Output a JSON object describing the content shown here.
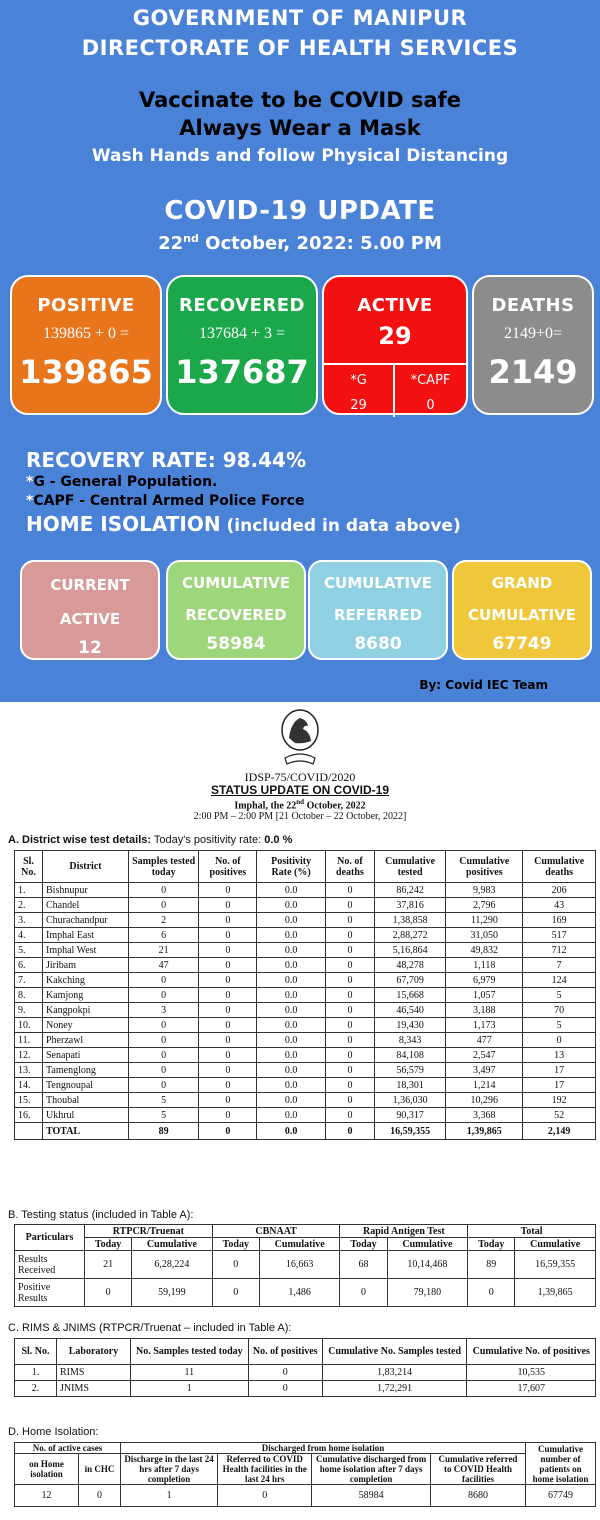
{
  "poster": {
    "gov_line1": "GOVERNMENT OF MANIPUR",
    "gov_line2": "DIRECTORATE OF HEALTH SERVICES",
    "msg_line1": "Vaccinate to be COVID safe",
    "msg_line2": "Always Wear a Mask",
    "msg_line3": "Wash Hands and follow Physical Distancing",
    "update_title": "COVID-19 UPDATE",
    "date_day": "22",
    "date_sup": "nd",
    "date_rest": " October, 2022: 5.00 PM",
    "cards": {
      "positive": {
        "title": "POSITIVE",
        "formula": "139865 + 0 =",
        "value": "139865",
        "color": "#e8741c"
      },
      "recovered": {
        "title": "RECOVERED",
        "formula": "137684 + 3 =",
        "value": "137687",
        "color": "#1aa84a"
      },
      "active": {
        "title": "ACTIVE",
        "value": "29",
        "g_label": "*G",
        "g_value": "29",
        "capf_label": "*CAPF",
        "capf_value": "0",
        "color": "#f21010"
      },
      "deaths": {
        "title": "DEATHS",
        "formula": "2149+0=",
        "value": "2149",
        "color": "#8c8c8c"
      }
    },
    "recovery_rate": "RECOVERY RATE: 98.44%",
    "g_note": "G - General Population.",
    "capf_note": "CAPF - Central Armed Police Force",
    "home_isolation_title": "HOME ISOLATION",
    "home_isolation_sub": " (included in data above)",
    "iso_cards": {
      "current": {
        "line1": "CURRENT",
        "line2": "ACTIVE",
        "value": "12"
      },
      "recovered": {
        "line1": "CUMULATIVE",
        "line2": "RECOVERED",
        "value": "58984"
      },
      "referred": {
        "line1": "CUMULATIVE",
        "line2": "REFERRED",
        "value": "8680"
      },
      "grand": {
        "line1": "GRAND",
        "line2": "CUMULATIVE",
        "value": "67749"
      }
    },
    "by_team": "By: Covid IEC Team"
  },
  "doc": {
    "ref": "IDSP-75/COVID/2020",
    "title": "STATUS UPDATE ON COVID-19",
    "place_prefix": "Imphal, the 22",
    "place_sup": "nd",
    "place_suffix": " October, 2022",
    "period": "2:00 PM – 2:00 PM [21 October – 22 October, 2022]",
    "secA_label": "A.  District wise test details:",
    "secA_rate": " Today's positivity rate: ",
    "secA_rate_val": "0.0 %",
    "tableA_headers": [
      "Sl. No.",
      "District",
      "Samples tested today",
      "No. of positives",
      "Positivity Rate (%)",
      "No. of deaths",
      "Cumulative tested",
      "Cumulative positives",
      "Cumulative deaths"
    ],
    "tableA_rows": [
      [
        "1.",
        "Bishnupur",
        "0",
        "0",
        "0.0",
        "0",
        "86,242",
        "9,983",
        "206"
      ],
      [
        "2.",
        "Chandel",
        "0",
        "0",
        "0.0",
        "0",
        "37,816",
        "2,796",
        "43"
      ],
      [
        "3.",
        "Churachandpur",
        "2",
        "0",
        "0.0",
        "0",
        "1,38,858",
        "11,290",
        "169"
      ],
      [
        "4.",
        "Imphal East",
        "6",
        "0",
        "0.0",
        "0",
        "2,88,272",
        "31,050",
        "517"
      ],
      [
        "5.",
        "Imphal West",
        "21",
        "0",
        "0.0",
        "0",
        "5,16,864",
        "49,832",
        "712"
      ],
      [
        "6.",
        "Jiribam",
        "47",
        "0",
        "0.0",
        "0",
        "48,278",
        "1,118",
        "7"
      ],
      [
        "7.",
        "Kakching",
        "0",
        "0",
        "0.0",
        "0",
        "67,709",
        "6,979",
        "124"
      ],
      [
        "8.",
        "Kamjong",
        "0",
        "0",
        "0.0",
        "0",
        "15,668",
        "1,057",
        "5"
      ],
      [
        "9.",
        "Kangpokpi",
        "3",
        "0",
        "0.0",
        "0",
        "46,540",
        "3,188",
        "70"
      ],
      [
        "10.",
        "Noney",
        "0",
        "0",
        "0.0",
        "0",
        "19,430",
        "1,173",
        "5"
      ],
      [
        "11.",
        "Pherzawl",
        "0",
        "0",
        "0.0",
        "0",
        "8,343",
        "477",
        "0"
      ],
      [
        "12.",
        "Senapati",
        "0",
        "0",
        "0.0",
        "0",
        "84,108",
        "2,547",
        "13"
      ],
      [
        "13.",
        "Tamenglong",
        "0",
        "0",
        "0.0",
        "0",
        "56,579",
        "3,497",
        "17"
      ],
      [
        "14.",
        "Tengnoupal",
        "0",
        "0",
        "0.0",
        "0",
        "18,301",
        "1,214",
        "17"
      ],
      [
        "15.",
        "Thoubal",
        "5",
        "0",
        "0.0",
        "0",
        "1,36,030",
        "10,296",
        "192"
      ],
      [
        "16.",
        "Ukhrul",
        "5",
        "0",
        "0.0",
        "0",
        "90,317",
        "3,368",
        "52"
      ]
    ],
    "tableA_total": [
      "",
      "TOTAL",
      "89",
      "0",
      "0.0",
      "0",
      "16,59,355",
      "1,39,865",
      "2,149"
    ],
    "secB_label": "B.  Testing status (included in Table A):",
    "tableB_groups": [
      "Particulars",
      "RTPCR/Truenat",
      "CBNAAT",
      "Rapid Antigen Test",
      "Total"
    ],
    "tableB_sub": [
      "Today",
      "Cumulative",
      "Today",
      "Cumulative",
      "Today",
      "Cumulative",
      "Today",
      "Cumulative"
    ],
    "tableB_rows": [
      [
        "Results Received",
        "21",
        "6,28,224",
        "0",
        "16,663",
        "68",
        "10,14,468",
        "89",
        "16,59,355"
      ],
      [
        "Positive Results",
        "0",
        "59,199",
        "0",
        "1,486",
        "0",
        "79,180",
        "0",
        "1,39,865"
      ]
    ],
    "secC_label": "C.  RIMS & JNIMS (RTPCR/Truenat – included in Table A):",
    "tableC_headers": [
      "Sl. No.",
      "Laboratory",
      "No. Samples tested today",
      "No. of positives",
      "Cumulative No. Samples tested",
      "Cumulative No. of positives"
    ],
    "tableC_rows": [
      [
        "1.",
        "RIMS",
        "11",
        "0",
        "1,83,214",
        "10,535"
      ],
      [
        "2.",
        "JNIMS",
        "1",
        "0",
        "1,72,291",
        "17,607"
      ]
    ],
    "secD_label": "D.  Home Isolation:",
    "tableD_group1": "No. of active cases",
    "tableD_group2": "Discharged from home isolation",
    "tableD_headers": [
      "on Home isolation",
      "in CHC",
      "Discharge in the last 24 hrs after 7 days completion",
      "Referred to COVID Health facilities in the last 24 hrs",
      "Cumulative discharged from home isolation after 7 days completion",
      "Cumulative referred to COVID Health facilities",
      "Cumulative number of patients on home isolation"
    ],
    "tableD_row": [
      "12",
      "0",
      "1",
      "0",
      "58984",
      "8680",
      "67749"
    ]
  }
}
